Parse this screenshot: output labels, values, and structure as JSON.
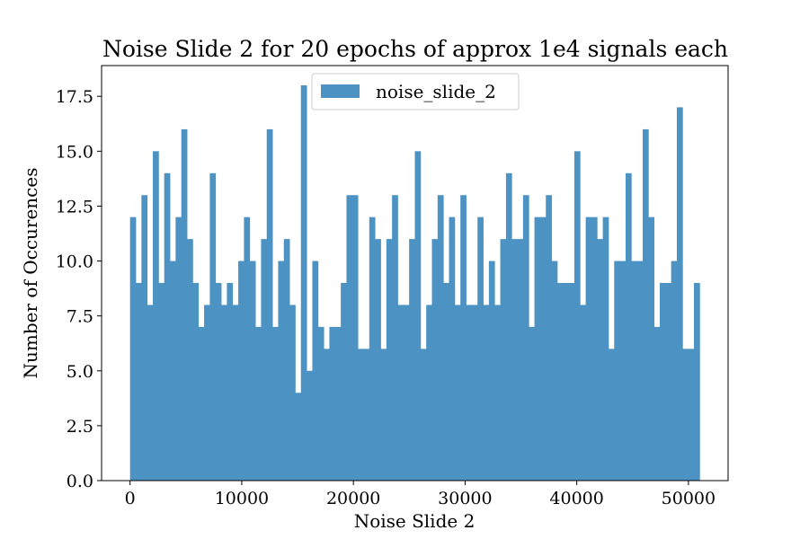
{
  "chart_data": {
    "type": "bar",
    "title": "Noise Slide 2 for 20 epochs of approx 1e4 signals each",
    "xlabel": "Noise Slide 2",
    "ylabel": "Number of Occurences",
    "xlim": [
      -2550,
      53550
    ],
    "ylim": [
      0,
      18.9
    ],
    "xticks": [
      0,
      10000,
      20000,
      30000,
      40000,
      50000
    ],
    "xtick_labels": [
      "0",
      "10000",
      "20000",
      "30000",
      "40000",
      "50000"
    ],
    "yticks": [
      0,
      2.5,
      5,
      7.5,
      10,
      12.5,
      15,
      17.5
    ],
    "ytick_labels": [
      "0.0",
      "2.5",
      "5.0",
      "7.5",
      "10.0",
      "12.5",
      "15.0",
      "17.5"
    ],
    "bin_start": 0,
    "bin_width": 510,
    "grid": false,
    "legend_position": "top-center",
    "series": [
      {
        "name": "noise_slide_2",
        "color": "#4c92c3",
        "values": [
          12,
          9,
          13,
          8,
          15,
          9,
          14,
          10,
          12,
          16,
          11,
          9,
          7,
          8,
          14,
          9,
          8,
          9,
          8,
          10,
          12,
          10,
          7,
          11,
          16,
          7,
          10,
          11,
          8,
          4,
          18,
          5,
          10,
          7,
          6,
          7,
          7,
          9,
          13,
          13,
          6,
          6,
          12,
          11,
          6,
          11,
          13,
          8,
          8,
          11,
          15,
          6,
          8,
          11,
          13,
          9,
          12,
          8,
          13,
          8,
          8,
          12,
          8,
          10,
          8,
          11,
          14,
          11,
          11,
          13,
          7,
          12,
          12,
          13,
          10,
          9,
          9,
          9,
          15,
          8,
          12,
          12,
          11,
          12,
          6,
          10,
          10,
          14,
          10,
          10,
          16,
          12,
          7,
          9,
          9,
          10,
          17,
          6,
          6,
          9
        ]
      }
    ]
  }
}
